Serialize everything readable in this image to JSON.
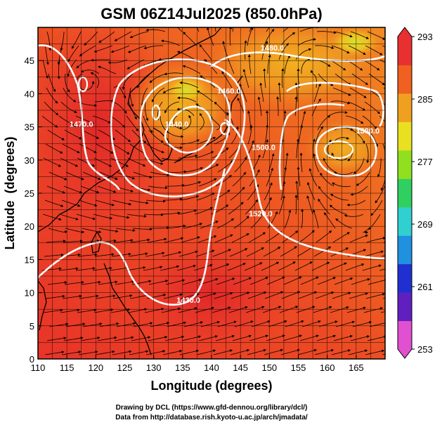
{
  "title": "GSM 06Z14Jul2025 (850.0hPa)",
  "map": {
    "xlabel": "Longitude (degrees)",
    "ylabel": "Latitude  (degrees)",
    "lon_range": [
      110,
      170
    ],
    "lat_range": [
      0,
      50
    ],
    "lon_ticks": [
      110,
      115,
      120,
      125,
      130,
      135,
      140,
      145,
      150,
      155,
      160,
      165
    ],
    "lat_ticks": [
      0,
      5,
      10,
      15,
      20,
      25,
      30,
      35,
      40,
      45
    ],
    "grid": true,
    "field": "temperature",
    "overlays": [
      "streamlines",
      "height-contours",
      "coastlines"
    ]
  },
  "colorbar": {
    "min": 253,
    "max": 293,
    "ticks": [
      293,
      285,
      277,
      269,
      261,
      253
    ],
    "colors": [
      "#e050d0",
      "#6020c0",
      "#2030d0",
      "#2090e0",
      "#30d0d0",
      "#30d060",
      "#90e020",
      "#e8e020",
      "#f0a020",
      "#f06020",
      "#e83030"
    ]
  },
  "contours": [
    {
      "label": "1480.0",
      "lon": 150.5,
      "lat": 46.5
    },
    {
      "label": "1460.0",
      "lon": 143.0,
      "lat": 40.0
    },
    {
      "label": "1440.0",
      "lon": 134.0,
      "lat": 35.0
    },
    {
      "label": "1470.0",
      "lon": 117.5,
      "lat": 35.0
    },
    {
      "label": "1500.0",
      "lon": 149.0,
      "lat": 31.5
    },
    {
      "label": "1520.0",
      "lon": 148.5,
      "lat": 21.5
    },
    {
      "label": "1430.0",
      "lon": 136.0,
      "lat": 8.5
    },
    {
      "label": "1500.0",
      "lon": 167.0,
      "lat": 34.0
    }
  ],
  "credits": {
    "line1": "Drawing by DCL (https://www.gfd-dennou.org/library/dcl/)",
    "line2": "Data from http://database.rish.kyoto-u.ac.jp/arch/jmadata/"
  }
}
